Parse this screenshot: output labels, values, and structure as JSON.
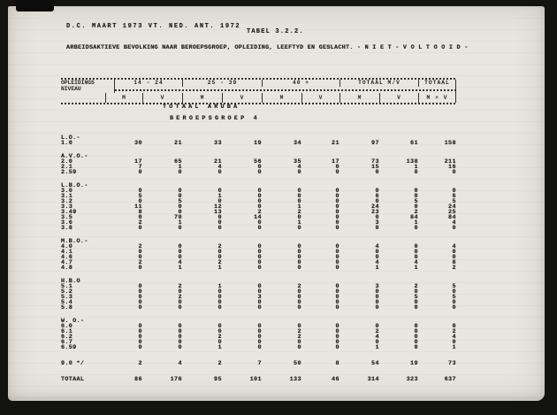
{
  "page": {
    "title_line1": "D.C. MAART 1973 VT. NED. ANT. 1972",
    "tabel_label": "TABEL 3.2.2.",
    "title_line2": "ARBEIDSAKTIEVE BEVOLKING NAAR BEROEPSGROEP, OPLEIDING, LEEFTYD EN GESLACHT. - N I E T - V O L T O O I D -",
    "section_title": "TOTAAL ARUBA",
    "section_subtitle": "BEROEPSGROEP 4"
  },
  "table": {
    "stub_header_line1": "OPLEIDINGS",
    "stub_header_line2": "NIVEAU",
    "age_groups": [
      "14 - 24",
      "25 - 39",
      "40 +",
      "TOTAAL M/V",
      "TOTAAL"
    ],
    "sub_headers": [
      "M",
      "V",
      "M",
      "V",
      "M",
      "V",
      "M",
      "V",
      "M + V"
    ],
    "blocks": [
      {
        "label": "L.O.-",
        "rows": [
          {
            "code": "1.0",
            "values": [
              30,
              21,
              33,
              19,
              34,
              21,
              97,
              61,
              158
            ]
          }
        ]
      },
      {
        "label": "A.V.O.-",
        "rows": [
          {
            "code": "2.0",
            "values": [
              17,
              65,
              21,
              56,
              35,
              17,
              73,
              138,
              211
            ]
          },
          {
            "code": "2.1",
            "values": [
              7,
              1,
              4,
              0,
              4,
              0,
              15,
              1,
              16
            ]
          },
          {
            "code": "2.59",
            "values": [
              0,
              0,
              0,
              0,
              0,
              0,
              0,
              0,
              0
            ]
          }
        ]
      },
      {
        "label": "L.B.O.-",
        "rows": [
          {
            "code": "3.0",
            "values": [
              0,
              0,
              0,
              0,
              0,
              0,
              0,
              0,
              0
            ]
          },
          {
            "code": "3.1",
            "values": [
              5,
              0,
              1,
              0,
              0,
              0,
              6,
              0,
              6
            ]
          },
          {
            "code": "3.2",
            "values": [
              0,
              5,
              0,
              0,
              0,
              0,
              0,
              5,
              5
            ]
          },
          {
            "code": "3.3",
            "values": [
              11,
              0,
              12,
              0,
              1,
              0,
              24,
              0,
              24
            ]
          },
          {
            "code": "3.49",
            "values": [
              8,
              0,
              13,
              2,
              2,
              0,
              23,
              2,
              25
            ]
          },
          {
            "code": "3.5",
            "values": [
              0,
              70,
              0,
              14,
              0,
              0,
              0,
              84,
              84
            ]
          },
          {
            "code": "3.6",
            "values": [
              2,
              1,
              0,
              0,
              1,
              0,
              3,
              1,
              4
            ]
          },
          {
            "code": "3.8",
            "values": [
              0,
              0,
              0,
              0,
              0,
              0,
              0,
              0,
              0
            ]
          }
        ]
      },
      {
        "label": "M.B.O.-",
        "rows": [
          {
            "code": "4.0",
            "values": [
              2,
              0,
              2,
              0,
              0,
              0,
              4,
              0,
              4
            ]
          },
          {
            "code": "4.1",
            "values": [
              0,
              0,
              0,
              0,
              0,
              0,
              0,
              0,
              0
            ]
          },
          {
            "code": "4.6",
            "values": [
              0,
              0,
              0,
              0,
              0,
              0,
              0,
              0,
              0
            ]
          },
          {
            "code": "4.7",
            "values": [
              2,
              4,
              2,
              0,
              0,
              0,
              4,
              4,
              8
            ]
          },
          {
            "code": "4.8",
            "values": [
              0,
              1,
              1,
              0,
              0,
              0,
              1,
              1,
              2
            ]
          }
        ]
      },
      {
        "label": "H.B.O",
        "rows": [
          {
            "code": "5.1",
            "values": [
              0,
              2,
              1,
              0,
              2,
              0,
              3,
              2,
              5
            ]
          },
          {
            "code": "5.2",
            "values": [
              0,
              0,
              0,
              0,
              0,
              0,
              0,
              0,
              0
            ]
          },
          {
            "code": "5.3",
            "values": [
              0,
              2,
              0,
              3,
              0,
              0,
              0,
              5,
              5
            ]
          },
          {
            "code": "5.4",
            "values": [
              0,
              0,
              0,
              0,
              0,
              0,
              0,
              0,
              0
            ]
          },
          {
            "code": "5.8",
            "values": [
              0,
              0,
              0,
              0,
              0,
              0,
              0,
              0,
              0
            ]
          }
        ]
      },
      {
        "label": "W. O.-",
        "rows": [
          {
            "code": "6.0",
            "values": [
              0,
              0,
              0,
              0,
              0,
              0,
              0,
              0,
              0
            ]
          },
          {
            "code": "6.1",
            "values": [
              0,
              0,
              0,
              0,
              2,
              0,
              2,
              0,
              2
            ]
          },
          {
            "code": "6.2",
            "values": [
              0,
              0,
              2,
              0,
              2,
              0,
              4,
              0,
              4
            ]
          },
          {
            "code": "6.7",
            "values": [
              0,
              0,
              0,
              0,
              0,
              0,
              0,
              0,
              0
            ]
          },
          {
            "code": "6.59",
            "values": [
              0,
              0,
              1,
              0,
              0,
              0,
              1,
              0,
              1
            ]
          }
        ]
      },
      {
        "label": "",
        "rows": [
          {
            "code": "9.0 */",
            "values": [
              2,
              4,
              2,
              7,
              50,
              8,
              54,
              19,
              73
            ]
          }
        ]
      },
      {
        "label": "",
        "rows": [
          {
            "code": "TOTAAL",
            "values": [
              86,
              176,
              95,
              101,
              133,
              46,
              314,
              323,
              637
            ]
          }
        ]
      }
    ]
  }
}
